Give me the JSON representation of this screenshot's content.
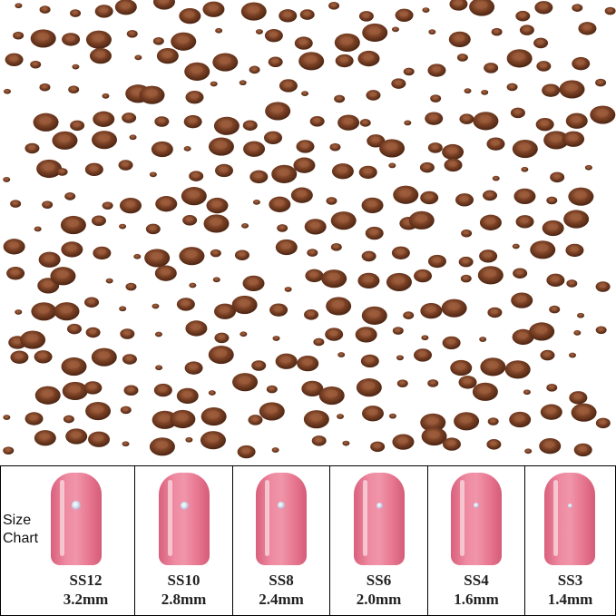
{
  "size_label": "Size Chart",
  "sizes": [
    {
      "code": "SS12",
      "mm": "3.2mm"
    },
    {
      "code": "SS10",
      "mm": "2.8mm"
    },
    {
      "code": "SS8",
      "mm": "2.4mm"
    },
    {
      "code": "SS6",
      "mm": "2.0mm"
    },
    {
      "code": "SS4",
      "mm": "1.6mm"
    },
    {
      "code": "SS3",
      "mm": "1.4mm"
    }
  ]
}
